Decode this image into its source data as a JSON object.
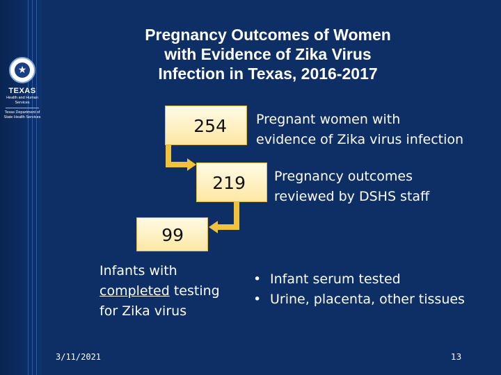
{
  "logo": {
    "brand": "TEXAS",
    "subtitle": "Health and Human Services",
    "agency": "Texas Department of State Health Services"
  },
  "title": {
    "line1": "Pregnancy Outcomes of Women",
    "line2": "with Evidence of Zika Virus",
    "line3": "Infection in Texas, 2016-2017"
  },
  "steps": [
    {
      "value": "254",
      "description_line1": "Pregnant women with",
      "description_line2": "evidence of Zika virus infection"
    },
    {
      "value": "219",
      "description_line1": "Pregnancy outcomes",
      "description_line2": "reviewed by DSHS staff"
    },
    {
      "value": "99"
    }
  ],
  "infants": {
    "line1": "Infants with",
    "emphasis": "completed",
    "line2_rest": " testing",
    "line3": "for Zika virus"
  },
  "bullets": [
    "Infant serum tested",
    "Urine, placenta, other tissues"
  ],
  "footer": {
    "date": "3/11/2021",
    "page": "13"
  },
  "colors": {
    "background": "#0d2f66",
    "box_fill": "#fde7a4",
    "arrow": "#f2c23a"
  }
}
